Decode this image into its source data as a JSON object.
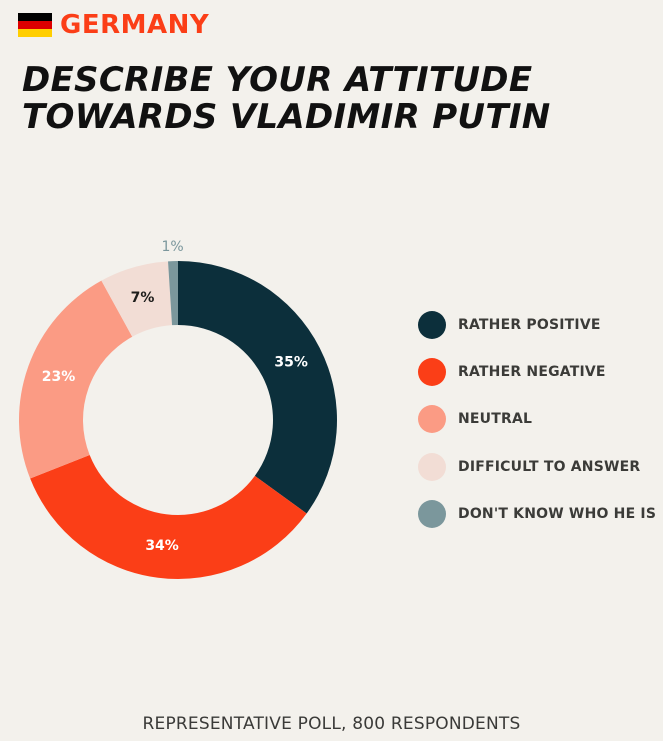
{
  "header": {
    "country": "GERMANY",
    "flag_colors": [
      "#000000",
      "#dd0000",
      "#ffce00"
    ]
  },
  "title_lines": [
    "DESCRIBE YOUR ATTITUDE",
    "TOWARDS VLADIMIR PUTIN"
  ],
  "chart_data": {
    "type": "pie",
    "variant": "donut",
    "title": "DESCRIBE YOUR ATTITUDE TOWARDS VLADIMIR PUTIN",
    "categories": [
      "RATHER POSITIVE",
      "RATHER NEGATIVE",
      "NEUTRAL",
      "DIFFICULT TO ANSWER",
      "DON'T KNOW WHO HE IS"
    ],
    "values": [
      35,
      34,
      23,
      7,
      1
    ],
    "labels": [
      "35%",
      "34%",
      "23%",
      "7%",
      "1%"
    ],
    "colors": [
      "#0c2f3b",
      "#fb3e17",
      "#fb9b84",
      "#f2ddd5",
      "#7b979c"
    ],
    "label_colors": [
      "#ffffff",
      "#ffffff",
      "#ffffff",
      "#1d1d1b",
      "#7b979c"
    ],
    "legend_position": "right"
  },
  "footer": "REPRESENTATIVE POLL, 800 RESPONDENTS"
}
